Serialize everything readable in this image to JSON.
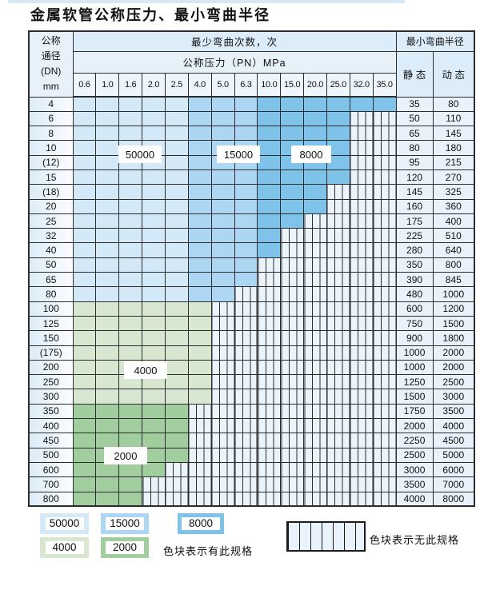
{
  "title": "金属软管公称压力、最小弯曲半径",
  "colors": {
    "cycles_50000": "#d3e9f8",
    "cycles_15000": "#acd6f2",
    "cycles_8000": "#7fc3eb",
    "cycles_4000": "#d7e7d0",
    "cycles_2000": "#a2cd9f",
    "no_spec_fill": "#ebf3fb",
    "grid_line": "#2b2c2e"
  },
  "table": {
    "corner_header": [
      "公称",
      "通径",
      "(DN)",
      "mm"
    ],
    "bend_cycles_header": "最少弯曲次数，次",
    "pressure_header": "公称压力（PN）MPa",
    "radius_header": "最小弯曲半径",
    "static_header": "静 态",
    "dynamic_header": "动 态",
    "pressure_values": [
      "0.6",
      "1.0",
      "1.6",
      "2.0",
      "2.5",
      "4.0",
      "5.0",
      "6.3",
      "10.0",
      "15.0",
      "20.0",
      "25.0",
      "32.0",
      "35.0"
    ],
    "cycle_zones": {
      "blue": [
        {
          "upto": 5,
          "cycles": "50000"
        },
        {
          "upto": 8,
          "cycles": "15000"
        },
        {
          "upto": 14,
          "cycles": "8000"
        }
      ],
      "g4000": "4000",
      "g2000": "2000"
    },
    "rows": [
      {
        "dn": "4",
        "colored": 14,
        "group": "blue",
        "static": "35",
        "dynamic": "80"
      },
      {
        "dn": "6",
        "colored": 12,
        "group": "blue",
        "static": "50",
        "dynamic": "110"
      },
      {
        "dn": "8",
        "colored": 12,
        "group": "blue",
        "static": "65",
        "dynamic": "145"
      },
      {
        "dn": "10",
        "colored": 12,
        "group": "blue",
        "static": "80",
        "dynamic": "180"
      },
      {
        "dn": "(12)",
        "colored": 12,
        "group": "blue",
        "static": "95",
        "dynamic": "215"
      },
      {
        "dn": "15",
        "colored": 12,
        "group": "blue",
        "static": "120",
        "dynamic": "270"
      },
      {
        "dn": "(18)",
        "colored": 11,
        "group": "blue",
        "static": "145",
        "dynamic": "325"
      },
      {
        "dn": "20",
        "colored": 11,
        "group": "blue",
        "static": "160",
        "dynamic": "360"
      },
      {
        "dn": "25",
        "colored": 10,
        "group": "blue",
        "static": "175",
        "dynamic": "400"
      },
      {
        "dn": "32",
        "colored": 9,
        "group": "blue",
        "static": "225",
        "dynamic": "510"
      },
      {
        "dn": "40",
        "colored": 9,
        "group": "blue",
        "static": "280",
        "dynamic": "640"
      },
      {
        "dn": "50",
        "colored": 8,
        "group": "blue",
        "static": "350",
        "dynamic": "800"
      },
      {
        "dn": "65",
        "colored": 8,
        "group": "blue",
        "static": "390",
        "dynamic": "845"
      },
      {
        "dn": "80",
        "colored": 7,
        "group": "blue",
        "static": "480",
        "dynamic": "1000"
      },
      {
        "dn": "100",
        "colored": 6,
        "group": "g4000",
        "static": "600",
        "dynamic": "1200"
      },
      {
        "dn": "125",
        "colored": 6,
        "group": "g4000",
        "static": "750",
        "dynamic": "1500"
      },
      {
        "dn": "150",
        "colored": 6,
        "group": "g4000",
        "static": "900",
        "dynamic": "1800"
      },
      {
        "dn": "(175)",
        "colored": 6,
        "group": "g4000",
        "static": "1000",
        "dynamic": "2000"
      },
      {
        "dn": "200",
        "colored": 6,
        "group": "g4000",
        "static": "1000",
        "dynamic": "2000"
      },
      {
        "dn": "250",
        "colored": 6,
        "group": "g4000",
        "static": "1250",
        "dynamic": "2500"
      },
      {
        "dn": "300",
        "colored": 6,
        "group": "g4000",
        "static": "1500",
        "dynamic": "3000"
      },
      {
        "dn": "350",
        "colored": 5,
        "group": "g2000",
        "static": "1750",
        "dynamic": "3500"
      },
      {
        "dn": "400",
        "colored": 5,
        "group": "g2000",
        "static": "2000",
        "dynamic": "4000"
      },
      {
        "dn": "450",
        "colored": 5,
        "group": "g2000",
        "static": "2250",
        "dynamic": "4500"
      },
      {
        "dn": "500",
        "colored": 5,
        "group": "g2000",
        "static": "2500",
        "dynamic": "5000"
      },
      {
        "dn": "600",
        "colored": 4,
        "group": "g2000",
        "static": "3000",
        "dynamic": "6000"
      },
      {
        "dn": "700",
        "colored": 3,
        "group": "g2000",
        "static": "3500",
        "dynamic": "7000"
      },
      {
        "dn": "800",
        "colored": 3,
        "group": "g2000",
        "static": "4000",
        "dynamic": "8000"
      }
    ]
  },
  "overlay_labels": [
    {
      "text": "50000"
    },
    {
      "text": "15000"
    },
    {
      "text": "8000"
    },
    {
      "text": "4000"
    },
    {
      "text": "2000"
    }
  ],
  "legend": {
    "items": [
      {
        "cycles": "50000",
        "color": "#d3e9f8"
      },
      {
        "cycles": "15000",
        "color": "#acd6f2"
      },
      {
        "cycles": "8000",
        "color": "#7fc3eb"
      },
      {
        "cycles": "4000",
        "color": "#d7e7d0"
      },
      {
        "cycles": "2000",
        "color": "#a2cd9f"
      }
    ],
    "available_caption": "色块表示有此规格",
    "unavailable_caption": "色块表示无此规格"
  }
}
